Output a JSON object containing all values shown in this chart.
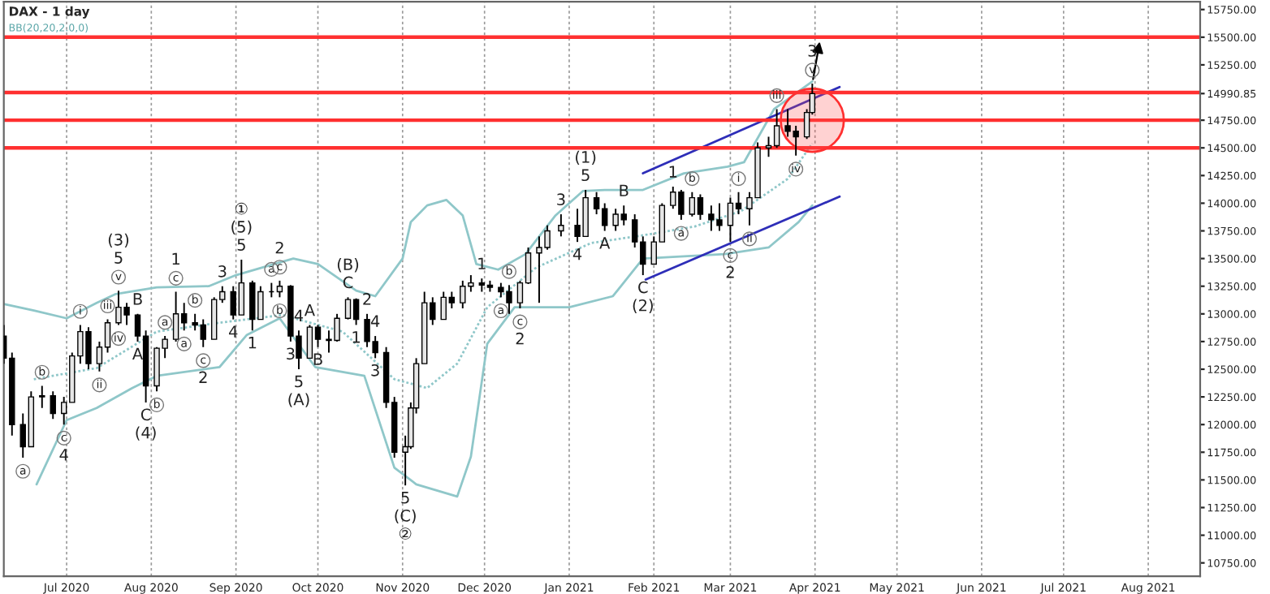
{
  "chart_data": {
    "type": "candlestick",
    "title": "DAX - 1 day",
    "subtitle": "BB(20,20,2.0,0)",
    "x": [
      "2020-06-08",
      "2020-06-11",
      "2020-06-15",
      "2020-06-18",
      "2020-06-22",
      "2020-06-26",
      "2020-06-30",
      "2020-07-03",
      "2020-07-06",
      "2020-07-09",
      "2020-07-13",
      "2020-07-16",
      "2020-07-20",
      "2020-07-23",
      "2020-07-27",
      "2020-07-30",
      "2020-08-03",
      "2020-08-06",
      "2020-08-10",
      "2020-08-13",
      "2020-08-17",
      "2020-08-20",
      "2020-08-24",
      "2020-08-27",
      "2020-08-31",
      "2020-09-03",
      "2020-09-07",
      "2020-09-10",
      "2020-09-14",
      "2020-09-17",
      "2020-09-21",
      "2020-09-24",
      "2020-09-28",
      "2020-10-01",
      "2020-10-05",
      "2020-10-08",
      "2020-10-12",
      "2020-10-15",
      "2020-10-19",
      "2020-10-22",
      "2020-10-26",
      "2020-10-29",
      "2020-11-02",
      "2020-11-04",
      "2020-11-06",
      "2020-11-09",
      "2020-11-12",
      "2020-11-16",
      "2020-11-19",
      "2020-11-23",
      "2020-11-26",
      "2020-11-30",
      "2020-12-03",
      "2020-12-07",
      "2020-12-10",
      "2020-12-14",
      "2020-12-17",
      "2020-12-21",
      "2020-12-24",
      "2020-12-29",
      "2021-01-04",
      "2021-01-07",
      "2021-01-11",
      "2021-01-14",
      "2021-01-18",
      "2021-01-21",
      "2021-01-25",
      "2021-01-28",
      "2021-02-01",
      "2021-02-04",
      "2021-02-08",
      "2021-02-11",
      "2021-02-15",
      "2021-02-18",
      "2021-02-22",
      "2021-02-25",
      "2021-03-01",
      "2021-03-04",
      "2021-03-08",
      "2021-03-11",
      "2021-03-15",
      "2021-03-18",
      "2021-03-22",
      "2021-03-25",
      "2021-03-29",
      "2021-03-31"
    ],
    "ohlc": [
      [
        12800,
        12900,
        12550,
        12600
      ],
      [
        12600,
        12650,
        11900,
        12000
      ],
      [
        12000,
        12100,
        11700,
        11800
      ],
      [
        11800,
        12300,
        11800,
        12250
      ],
      [
        12250,
        12350,
        12150,
        12260
      ],
      [
        12260,
        12300,
        12050,
        12100
      ],
      [
        12100,
        12250,
        12000,
        12200
      ],
      [
        12200,
        12650,
        12200,
        12620
      ],
      [
        12620,
        12900,
        12550,
        12840
      ],
      [
        12840,
        12880,
        12500,
        12550
      ],
      [
        12550,
        12750,
        12480,
        12700
      ],
      [
        12700,
        12950,
        12650,
        12920
      ],
      [
        12920,
        13210,
        12900,
        13060
      ],
      [
        13060,
        13100,
        12900,
        12990
      ],
      [
        12990,
        13000,
        12750,
        12800
      ],
      [
        12800,
        12850,
        12200,
        12350
      ],
      [
        12350,
        12700,
        12300,
        12690
      ],
      [
        12690,
        12800,
        12600,
        12770
      ],
      [
        12770,
        13200,
        12750,
        13000
      ],
      [
        13000,
        13100,
        12850,
        12920
      ],
      [
        12920,
        13000,
        12850,
        12900
      ],
      [
        12900,
        12950,
        12700,
        12770
      ],
      [
        12770,
        13150,
        12770,
        13130
      ],
      [
        13130,
        13250,
        13100,
        13200
      ],
      [
        13200,
        13250,
        12950,
        12990
      ],
      [
        12990,
        13490,
        12990,
        13280
      ],
      [
        13280,
        13300,
        12850,
        12950
      ],
      [
        12950,
        13250,
        12950,
        13200
      ],
      [
        13200,
        13280,
        13150,
        13200
      ],
      [
        13200,
        13300,
        13150,
        13250
      ],
      [
        13250,
        13260,
        12750,
        12800
      ],
      [
        12800,
        12850,
        12500,
        12600
      ],
      [
        12600,
        12900,
        12600,
        12880
      ],
      [
        12880,
        12900,
        12700,
        12770
      ],
      [
        12770,
        12850,
        12650,
        12760
      ],
      [
        12760,
        13000,
        12750,
        12960
      ],
      [
        12960,
        13150,
        12950,
        13130
      ],
      [
        13130,
        13140,
        12900,
        12950
      ],
      [
        12950,
        13000,
        12700,
        12750
      ],
      [
        12750,
        12800,
        12600,
        12650
      ],
      [
        12650,
        12700,
        12150,
        12200
      ],
      [
        12200,
        12250,
        11700,
        11750
      ],
      [
        11750,
        11900,
        11450,
        11800
      ],
      [
        11800,
        12200,
        11780,
        12150
      ],
      [
        12150,
        12600,
        12100,
        12550
      ],
      [
        12550,
        13200,
        12550,
        13100
      ],
      [
        13100,
        13150,
        12900,
        12950
      ],
      [
        12950,
        13200,
        12950,
        13150
      ],
      [
        13150,
        13200,
        13050,
        13100
      ],
      [
        13100,
        13300,
        13050,
        13250
      ],
      [
        13250,
        13350,
        13200,
        13280
      ],
      [
        13280,
        13320,
        13200,
        13260
      ],
      [
        13260,
        13300,
        13200,
        13240
      ],
      [
        13240,
        13280,
        13150,
        13200
      ],
      [
        13200,
        13260,
        13000,
        13100
      ],
      [
        13100,
        13300,
        13050,
        13280
      ],
      [
        13280,
        13600,
        13270,
        13550
      ],
      [
        13550,
        13700,
        13100,
        13600
      ],
      [
        13600,
        13800,
        13580,
        13750
      ],
      [
        13750,
        13900,
        13700,
        13800
      ],
      [
        13800,
        13950,
        13650,
        13700
      ],
      [
        13700,
        14120,
        13700,
        14050
      ],
      [
        14050,
        14100,
        13900,
        13950
      ],
      [
        13950,
        14000,
        13750,
        13800
      ],
      [
        13800,
        13950,
        13750,
        13900
      ],
      [
        13900,
        13980,
        13800,
        13850
      ],
      [
        13850,
        13900,
        13600,
        13650
      ],
      [
        13650,
        13700,
        13350,
        13450
      ],
      [
        13450,
        13700,
        13450,
        13650
      ],
      [
        13650,
        14000,
        13650,
        13980
      ],
      [
        13980,
        14150,
        13950,
        14100
      ],
      [
        14100,
        14120,
        13850,
        13900
      ],
      [
        13900,
        14100,
        13880,
        14050
      ],
      [
        14050,
        14080,
        13850,
        13900
      ],
      [
        13900,
        13980,
        13750,
        13850
      ],
      [
        13850,
        14000,
        13750,
        13800
      ],
      [
        13800,
        14050,
        13650,
        14000
      ],
      [
        14000,
        14100,
        13900,
        13950
      ],
      [
        13950,
        14100,
        13800,
        14050
      ],
      [
        14050,
        14550,
        14050,
        14500
      ],
      [
        14500,
        14600,
        14420,
        14520
      ],
      [
        14520,
        14850,
        14500,
        14700
      ],
      [
        14700,
        14850,
        14600,
        14650
      ],
      [
        14650,
        14700,
        14430,
        14600
      ],
      [
        14600,
        14850,
        14580,
        14820
      ],
      [
        14820,
        15080,
        14800,
        14990
      ]
    ],
    "series": [
      {
        "type": "line",
        "color": "#8fc7c9",
        "line_style": "solid",
        "x": [
          "2020-06-08",
          "2020-06-19",
          "2020-07-01",
          "2020-07-12",
          "2020-07-19",
          "2020-08-03",
          "2020-08-22",
          "2020-09-01",
          "2020-09-15",
          "2020-09-22",
          "2020-10-01",
          "2020-10-15",
          "2020-10-22",
          "2020-11-01",
          "2020-11-04",
          "2020-11-10",
          "2020-11-17",
          "2020-11-23",
          "2020-11-28",
          "2020-12-06",
          "2020-12-16",
          "2020-12-27",
          "2021-01-06",
          "2021-01-14",
          "2021-01-28",
          "2021-02-12",
          "2021-02-28",
          "2021-03-06",
          "2021-03-17",
          "2021-03-31"
        ],
        "values": [
          13090,
          13030,
          12960,
          13100,
          13180,
          13240,
          13250,
          13350,
          13450,
          13500,
          13450,
          13210,
          13160,
          13500,
          13830,
          13980,
          14030,
          13890,
          13450,
          13400,
          13540,
          13890,
          14110,
          14120,
          14120,
          14270,
          14330,
          14370,
          14850,
          15100
        ]
      },
      {
        "type": "line",
        "color": "#8fc7c9",
        "line_style": "solid",
        "x": [
          "2020-06-20",
          "2020-07-01",
          "2020-07-12",
          "2020-07-25",
          "2020-08-03",
          "2020-08-26",
          "2020-09-05",
          "2020-09-17",
          "2020-09-30",
          "2020-10-18",
          "2020-10-29",
          "2020-11-06",
          "2020-11-21",
          "2020-11-26",
          "2020-12-02",
          "2020-12-12",
          "2021-01-01",
          "2021-01-17",
          "2021-01-28",
          "2021-02-27",
          "2021-03-15",
          "2021-03-26",
          "2021-03-31"
        ],
        "values": [
          11460,
          12040,
          12150,
          12330,
          12440,
          12520,
          12810,
          12960,
          12520,
          12440,
          11610,
          11460,
          11350,
          11710,
          12730,
          13060,
          13060,
          13160,
          13500,
          13540,
          13600,
          13830,
          13980
        ]
      },
      {
        "type": "line",
        "color": "#8fc7c9",
        "line_style": "dotted",
        "x": [
          "2020-06-19",
          "2020-07-12",
          "2020-08-03",
          "2020-08-26",
          "2020-09-18",
          "2020-10-10",
          "2020-10-29",
          "2020-11-10",
          "2020-11-21",
          "2020-12-02",
          "2020-12-20",
          "2021-01-09",
          "2021-01-28",
          "2021-02-16",
          "2021-03-05",
          "2021-03-22",
          "2021-03-31"
        ],
        "values": [
          12410,
          12510,
          12840,
          12920,
          12990,
          12840,
          12410,
          12330,
          12550,
          13060,
          13420,
          13640,
          13710,
          13790,
          13930,
          14220,
          14540
        ]
      },
      {
        "type": "line",
        "color": "#2e2eb8",
        "line_style": "solid",
        "x": [
          "2021-01-28",
          "2021-04-10"
        ],
        "values": [
          14270,
          15050
        ]
      },
      {
        "type": "line",
        "color": "#2e2eb8",
        "line_style": "solid",
        "x": [
          "2021-01-29",
          "2021-04-10"
        ],
        "values": [
          13310,
          14060
        ]
      }
    ],
    "ref_lines": [
      {
        "axis": "y",
        "value": 15500,
        "color": "#ff3030"
      },
      {
        "axis": "y",
        "value": 15000,
        "color": "#ff3030"
      },
      {
        "axis": "y",
        "value": 14750,
        "color": "#ff3030"
      },
      {
        "axis": "y",
        "value": 14500,
        "color": "#ff3030"
      }
    ],
    "annotations": [
      {
        "text": "a",
        "x": "2020-06-15",
        "y": 11700
      },
      {
        "text": "b",
        "x": "2020-06-22",
        "y": 12350
      },
      {
        "text": "c",
        "x": "2020-06-30",
        "y": 12000
      },
      {
        "text": "4",
        "x": "2020-06-30",
        "y": 12000
      },
      {
        "text": "i",
        "x": "2020-07-06",
        "y": 12900
      },
      {
        "text": "ii",
        "x": "2020-07-13",
        "y": 12480
      },
      {
        "text": "iii",
        "x": "2020-07-16",
        "y": 12950
      },
      {
        "text": "iv",
        "x": "2020-07-20",
        "y": 12900
      },
      {
        "text": "v",
        "x": "2020-07-20",
        "y": 13210
      },
      {
        "text": "5",
        "x": "2020-07-20",
        "y": 13210
      },
      {
        "text": "(3)",
        "x": "2020-07-20",
        "y": 13210
      },
      {
        "text": "A",
        "x": "2020-07-27",
        "y": 12750
      },
      {
        "text": "B",
        "x": "2020-07-27",
        "y": 13000
      },
      {
        "text": "C",
        "x": "2020-07-30",
        "y": 12200
      },
      {
        "text": "(4)",
        "x": "2020-07-30",
        "y": 12200
      },
      {
        "text": "a",
        "x": "2020-08-06",
        "y": 12800
      },
      {
        "text": "b",
        "x": "2020-08-03",
        "y": 12300
      },
      {
        "text": "c",
        "x": "2020-08-10",
        "y": 13200
      },
      {
        "text": "1",
        "x": "2020-08-10",
        "y": 13200
      },
      {
        "text": "a",
        "x": "2020-08-13",
        "y": 12850
      },
      {
        "text": "b",
        "x": "2020-08-17",
        "y": 13000
      },
      {
        "text": "c",
        "x": "2020-08-20",
        "y": 12700
      },
      {
        "text": "2",
        "x": "2020-08-20",
        "y": 12700
      },
      {
        "text": "3",
        "x": "2020-08-27",
        "y": 13250
      },
      {
        "text": "4",
        "x": "2020-08-31",
        "y": 12950
      },
      {
        "text": "5",
        "x": "2020-09-03",
        "y": 13490
      },
      {
        "text": "(5)",
        "x": "2020-09-03",
        "y": 13490
      },
      {
        "text": "①",
        "x": "2020-09-03",
        "y": 13490
      },
      {
        "text": "1",
        "x": "2020-09-07",
        "y": 12850
      },
      {
        "text": "a",
        "x": "2020-09-14",
        "y": 13280
      },
      {
        "text": "c",
        "x": "2020-09-17",
        "y": 13300
      },
      {
        "text": "2",
        "x": "2020-09-17",
        "y": 13300
      },
      {
        "text": "b",
        "x": "2020-09-17",
        "y": 13150
      },
      {
        "text": "3",
        "x": "2020-09-21",
        "y": 12750
      },
      {
        "text": "4",
        "x": "2020-09-24",
        "y": 12850
      },
      {
        "text": "5",
        "x": "2020-09-24",
        "y": 12500
      },
      {
        "text": "(A)",
        "x": "2020-09-24",
        "y": 12500
      },
      {
        "text": "A",
        "x": "2020-09-28",
        "y": 12900
      },
      {
        "text": "B",
        "x": "2020-10-01",
        "y": 12700
      },
      {
        "text": "C",
        "x": "2020-10-12",
        "y": 13150
      },
      {
        "text": "(B)",
        "x": "2020-10-12",
        "y": 13150
      },
      {
        "text": "1",
        "x": "2020-10-15",
        "y": 12900
      },
      {
        "text": "2",
        "x": "2020-10-19",
        "y": 13000
      },
      {
        "text": "4",
        "x": "2020-10-22",
        "y": 12800
      },
      {
        "text": "3",
        "x": "2020-10-22",
        "y": 12600
      },
      {
        "text": "5",
        "x": "2020-11-02",
        "y": 11450
      },
      {
        "text": "(C)",
        "x": "2020-11-02",
        "y": 11450
      },
      {
        "text": "②",
        "x": "2020-11-02",
        "y": 11450
      },
      {
        "text": "1",
        "x": "2020-11-30",
        "y": 13320
      },
      {
        "text": "a",
        "x": "2020-12-07",
        "y": 13150
      },
      {
        "text": "b",
        "x": "2020-12-10",
        "y": 13260
      },
      {
        "text": "c",
        "x": "2020-12-14",
        "y": 13050
      },
      {
        "text": "2",
        "x": "2020-12-14",
        "y": 13050
      },
      {
        "text": "3",
        "x": "2020-12-29",
        "y": 13900
      },
      {
        "text": "4",
        "x": "2021-01-04",
        "y": 13650
      },
      {
        "text": "5",
        "x": "2021-01-07",
        "y": 14120
      },
      {
        "text": "(1)",
        "x": "2021-01-07",
        "y": 14120
      },
      {
        "text": "A",
        "x": "2021-01-14",
        "y": 13750
      },
      {
        "text": "B",
        "x": "2021-01-21",
        "y": 13980
      },
      {
        "text": "C",
        "x": "2021-01-28",
        "y": 13350
      },
      {
        "text": "(2)",
        "x": "2021-01-28",
        "y": 13350
      },
      {
        "text": "1",
        "x": "2021-02-08",
        "y": 14150
      },
      {
        "text": "a",
        "x": "2021-02-11",
        "y": 13850
      },
      {
        "text": "b",
        "x": "2021-02-15",
        "y": 14100
      },
      {
        "text": "c",
        "x": "2021-03-01",
        "y": 13650
      },
      {
        "text": "2",
        "x": "2021-03-01",
        "y": 13650
      },
      {
        "text": "i",
        "x": "2021-03-04",
        "y": 14100
      },
      {
        "text": "ii",
        "x": "2021-03-08",
        "y": 13800
      },
      {
        "text": "iii",
        "x": "2021-03-18",
        "y": 14850
      },
      {
        "text": "iv",
        "x": "2021-03-25",
        "y": 14430
      },
      {
        "text": "v",
        "x": "2021-03-31",
        "y": 15080
      },
      {
        "text": "3",
        "x": "2021-03-31",
        "y": 15080
      }
    ],
    "xlim": [
      "2020-06-08",
      "2021-08-20"
    ],
    "xticks": [
      {
        "value": "2020-07-01",
        "label": "Jul 2020"
      },
      {
        "value": "2020-08-01",
        "label": "Aug 2020"
      },
      {
        "value": "2020-09-01",
        "label": "Sep 2020"
      },
      {
        "value": "2020-10-01",
        "label": "Oct 2020"
      },
      {
        "value": "2020-11-01",
        "label": "Nov 2020"
      },
      {
        "value": "2020-12-01",
        "label": "Dec 2020"
      },
      {
        "value": "2021-01-01",
        "label": "Jan 2021"
      },
      {
        "value": "2021-02-01",
        "label": "Feb 2021"
      },
      {
        "value": "2021-03-01",
        "label": "Mar 2021"
      },
      {
        "value": "2021-04-01",
        "label": "Apr 2021"
      },
      {
        "value": "2021-05-01",
        "label": "May 2021"
      },
      {
        "value": "2021-06-01",
        "label": "Jun 2021"
      },
      {
        "value": "2021-07-01",
        "label": "Jul 2021"
      },
      {
        "value": "2021-08-01",
        "label": "Aug 2021"
      }
    ],
    "ylim": [
      10630,
      15820
    ],
    "yticks": [
      {
        "value": 10750,
        "label": "10750.00"
      },
      {
        "value": 11000,
        "label": "11000.00"
      },
      {
        "value": 11250,
        "label": "11250.00"
      },
      {
        "value": 11500,
        "label": "11500.00"
      },
      {
        "value": 11750,
        "label": "11750.00"
      },
      {
        "value": 12000,
        "label": "12000.00"
      },
      {
        "value": 12250,
        "label": "12250.00"
      },
      {
        "value": 12500,
        "label": "12500.00"
      },
      {
        "value": 12750,
        "label": "12750.00"
      },
      {
        "value": 13000,
        "label": "13000.00"
      },
      {
        "value": 13250,
        "label": "13250.00"
      },
      {
        "value": 13500,
        "label": "13500.00"
      },
      {
        "value": 13750,
        "label": "13750.00"
      },
      {
        "value": 14000,
        "label": "14000.00"
      },
      {
        "value": 14250,
        "label": "14250.00"
      },
      {
        "value": 14500,
        "label": "14500.00"
      },
      {
        "value": 14750,
        "label": "14750.00"
      },
      {
        "value": 14990.85,
        "label": "14990.85"
      },
      {
        "value": 15250,
        "label": "15250.00"
      },
      {
        "value": 15500,
        "label": "15500.00"
      },
      {
        "value": 15750,
        "label": "15750.00"
      }
    ],
    "grid": "x"
  }
}
